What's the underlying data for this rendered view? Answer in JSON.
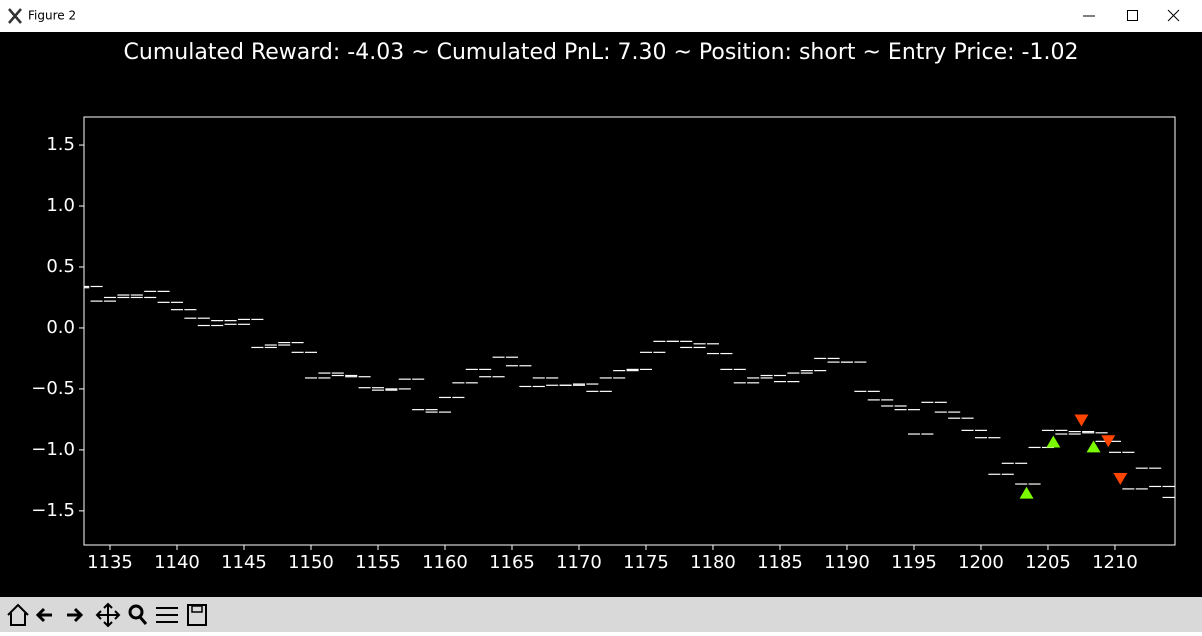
{
  "window_title": "Figure 2",
  "chart_data": {
    "type": "candlestick",
    "title": "Cumulated Reward: -4.03 ~ Cumulated PnL: 7.30 ~ Position: short ~ Entry Price: -1.02",
    "x": [
      1133,
      1134,
      1135,
      1136,
      1137,
      1138,
      1139,
      1140,
      1141,
      1142,
      1143,
      1144,
      1145,
      1146,
      1147,
      1148,
      1149,
      1150,
      1151,
      1152,
      1153,
      1154,
      1155,
      1156,
      1157,
      1158,
      1159,
      1160,
      1161,
      1162,
      1163,
      1164,
      1165,
      1166,
      1167,
      1168,
      1169,
      1170,
      1171,
      1172,
      1173,
      1174,
      1175,
      1176,
      1177,
      1178,
      1179,
      1180,
      1181,
      1182,
      1183,
      1184,
      1185,
      1186,
      1187,
      1188,
      1189,
      1190,
      1191,
      1192,
      1193,
      1194,
      1195,
      1196,
      1197,
      1198,
      1199,
      1200,
      1201,
      1202,
      1203,
      1204,
      1205,
      1206,
      1207,
      1208,
      1209,
      1210,
      1211,
      1212,
      1213,
      1214
    ],
    "open": [
      0.33,
      0.34,
      0.22,
      0.25,
      0.27,
      0.25,
      0.3,
      0.21,
      0.15,
      0.08,
      0.02,
      0.06,
      0.03,
      0.07,
      -0.16,
      -0.14,
      -0.12,
      -0.2,
      -0.41,
      -0.37,
      -0.39,
      -0.4,
      -0.49,
      -0.51,
      -0.5,
      -0.42,
      -0.67,
      -0.69,
      -0.57,
      -0.45,
      -0.34,
      -0.4,
      -0.24,
      -0.31,
      -0.48,
      -0.41,
      -0.47,
      -0.47,
      -0.46,
      -0.52,
      -0.41,
      -0.35,
      -0.34,
      -0.2,
      -0.11,
      -0.11,
      -0.16,
      -0.13,
      -0.21,
      -0.34,
      -0.45,
      -0.41,
      -0.39,
      -0.44,
      -0.37,
      -0.35,
      -0.25,
      -0.28,
      -0.28,
      -0.52,
      -0.59,
      -0.64,
      -0.67,
      -0.87,
      -0.61,
      -0.69,
      -0.74,
      -0.84,
      -0.9,
      -1.2,
      -1.11,
      -1.28,
      -0.98,
      -0.84,
      -0.87,
      -0.85,
      -0.86,
      -0.93,
      -1.02,
      -1.32,
      -1.15,
      -1.3
    ],
    "close": [
      0.34,
      0.22,
      0.25,
      0.27,
      0.25,
      0.3,
      0.21,
      0.15,
      0.08,
      0.02,
      0.06,
      0.03,
      0.07,
      -0.16,
      -0.14,
      -0.12,
      -0.2,
      -0.41,
      -0.37,
      -0.39,
      -0.4,
      -0.49,
      -0.51,
      -0.5,
      -0.42,
      -0.67,
      -0.69,
      -0.57,
      -0.45,
      -0.34,
      -0.4,
      -0.24,
      -0.31,
      -0.48,
      -0.41,
      -0.47,
      -0.47,
      -0.46,
      -0.52,
      -0.41,
      -0.35,
      -0.34,
      -0.2,
      -0.11,
      -0.11,
      -0.16,
      -0.13,
      -0.21,
      -0.34,
      -0.45,
      -0.41,
      -0.39,
      -0.44,
      -0.37,
      -0.35,
      -0.25,
      -0.28,
      -0.28,
      -0.52,
      -0.59,
      -0.64,
      -0.67,
      -0.87,
      -0.61,
      -0.69,
      -0.74,
      -0.84,
      -0.9,
      -1.2,
      -1.11,
      -1.28,
      -0.98,
      -0.84,
      -0.87,
      -0.85,
      -0.86,
      -0.93,
      -1.02,
      -1.32,
      -1.15,
      -1.3,
      -1.39
    ],
    "color": "#ffffff",
    "buys": {
      "x": [
        1203.4,
        1205.4,
        1208.4
      ],
      "y": [
        -1.36,
        -0.94,
        -0.98
      ],
      "color": "#7cfc00"
    },
    "sells": {
      "x": [
        1207.5,
        1209.5,
        1210.4
      ],
      "y": [
        -0.75,
        -0.92,
        -1.23
      ],
      "color": "#ff4500"
    },
    "xlim": [
      1133.06,
      1214.48
    ],
    "ylim": [
      -1.78,
      1.73
    ],
    "xticks": [
      1135,
      1140,
      1145,
      1150,
      1155,
      1160,
      1165,
      1170,
      1175,
      1180,
      1185,
      1190,
      1195,
      1200,
      1205,
      1210
    ],
    "yticks": [
      {
        "value": -1.5,
        "label": "−1.5"
      },
      {
        "value": -1.0,
        "label": "−1.0"
      },
      {
        "value": -0.5,
        "label": "−0.5"
      },
      {
        "value": 0.0,
        "label": "0.0"
      },
      0.5,
      {
        "value": 1.0,
        "label": "1.0"
      },
      1.5
    ]
  }
}
